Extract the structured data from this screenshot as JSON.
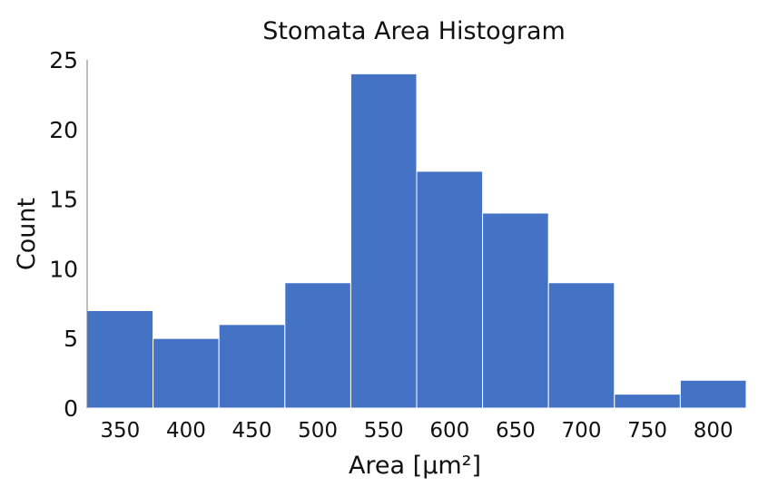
{
  "chart_data": {
    "type": "bar",
    "title": "Stomata Area Histogram",
    "xlabel": "Area [μm²]",
    "ylabel": "Count",
    "categories": [
      "350",
      "400",
      "450",
      "500",
      "550",
      "600",
      "650",
      "700",
      "750",
      "800"
    ],
    "values": [
      7,
      5,
      6,
      9,
      24,
      17,
      14,
      9,
      1,
      2
    ],
    "ylim": [
      0,
      25
    ],
    "yticks": [
      "0",
      "5",
      "10",
      "15",
      "20",
      "25"
    ],
    "grid": false,
    "bar_color": "#4472C4"
  }
}
